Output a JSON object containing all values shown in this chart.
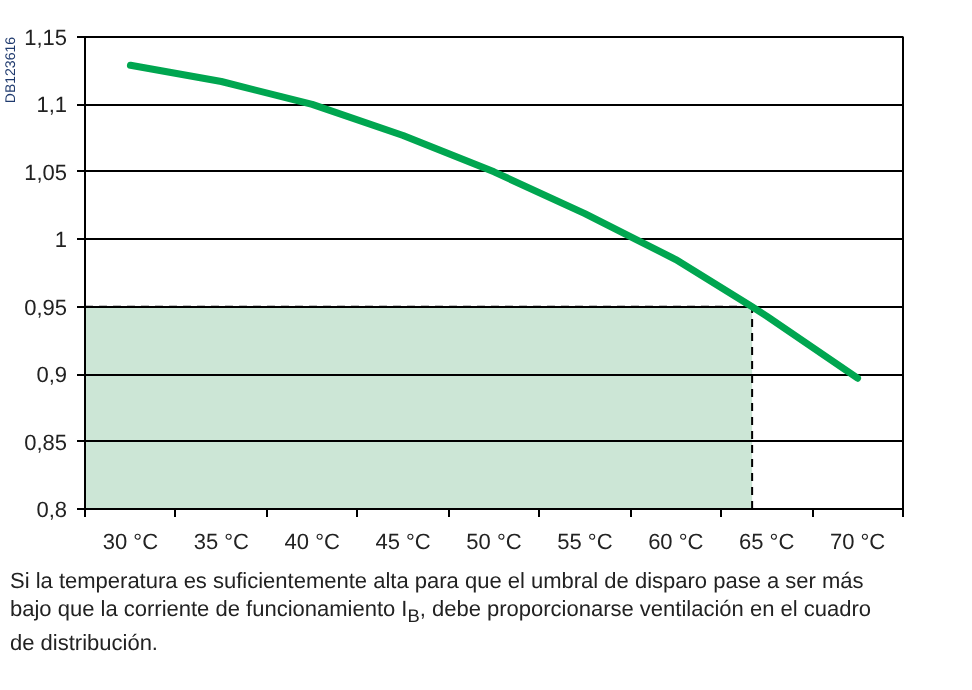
{
  "chart_data": {
    "type": "line",
    "x": [
      30,
      35,
      40,
      45,
      50,
      55,
      57.8,
      60,
      64.2,
      65,
      70
    ],
    "series": [
      {
        "color": "#00a650",
        "values": [
          1.129,
          1.117,
          1.1,
          1.077,
          1.05,
          1.019,
          1.0,
          0.985,
          0.95,
          0.943,
          0.897
        ]
      }
    ],
    "xlim": [
      27.5,
      72.5
    ],
    "xticks": [
      {
        "value": 27.5,
        "label": null
      },
      {
        "value": 30,
        "label": "30 °C"
      },
      {
        "value": 32.5,
        "label": null
      },
      {
        "value": 35,
        "label": "35 °C"
      },
      {
        "value": 37.5,
        "label": null
      },
      {
        "value": 40,
        "label": "40 °C"
      },
      {
        "value": 42.5,
        "label": null
      },
      {
        "value": 45,
        "label": "45 °C"
      },
      {
        "value": 47.5,
        "label": null
      },
      {
        "value": 50,
        "label": "50 °C"
      },
      {
        "value": 52.5,
        "label": null
      },
      {
        "value": 55,
        "label": "55 °C"
      },
      {
        "value": 57.5,
        "label": null
      },
      {
        "value": 60,
        "label": "60 °C"
      },
      {
        "value": 62.5,
        "label": null
      },
      {
        "value": 65,
        "label": "65 °C"
      },
      {
        "value": 67.5,
        "label": null
      },
      {
        "value": 70,
        "label": "70 °C"
      },
      {
        "value": 72.5,
        "label": null
      }
    ],
    "ylim": [
      0.8,
      1.15
    ],
    "yticks": [
      {
        "value": 0.8,
        "label": "0,8"
      },
      {
        "value": 0.85,
        "label": "0,85"
      },
      {
        "value": 0.9,
        "label": "0,9"
      },
      {
        "value": 0.95,
        "label": "0,95"
      },
      {
        "value": 1,
        "label": "1"
      },
      {
        "value": 1.05,
        "label": "1,05"
      },
      {
        "value": 1.1,
        "label": "1,1"
      },
      {
        "value": 1.15,
        "label": "1,15"
      }
    ],
    "grid": "y",
    "marker": "none",
    "line_style": "solid",
    "bands": [
      {
        "axis": "x",
        "from": 27.5,
        "to": 64.2,
        "color": "#cce6d6"
      }
    ],
    "ref_lines": [
      {
        "axis": "y",
        "value": 0.95,
        "line_style": "dashed",
        "color": "#000000"
      },
      {
        "axis": "x",
        "value": 64.2,
        "line_style": "dashed",
        "color": "#000000"
      }
    ],
    "annotations": [
      "DB123616",
      "Si la temperatura es suficientemente alta para que el umbral de disparo pase a ser más bajo que la corriente de funcionamiento I$_{B}$, debe proporcionarse ventilación en el cuadro de distribución."
    ]
  }
}
